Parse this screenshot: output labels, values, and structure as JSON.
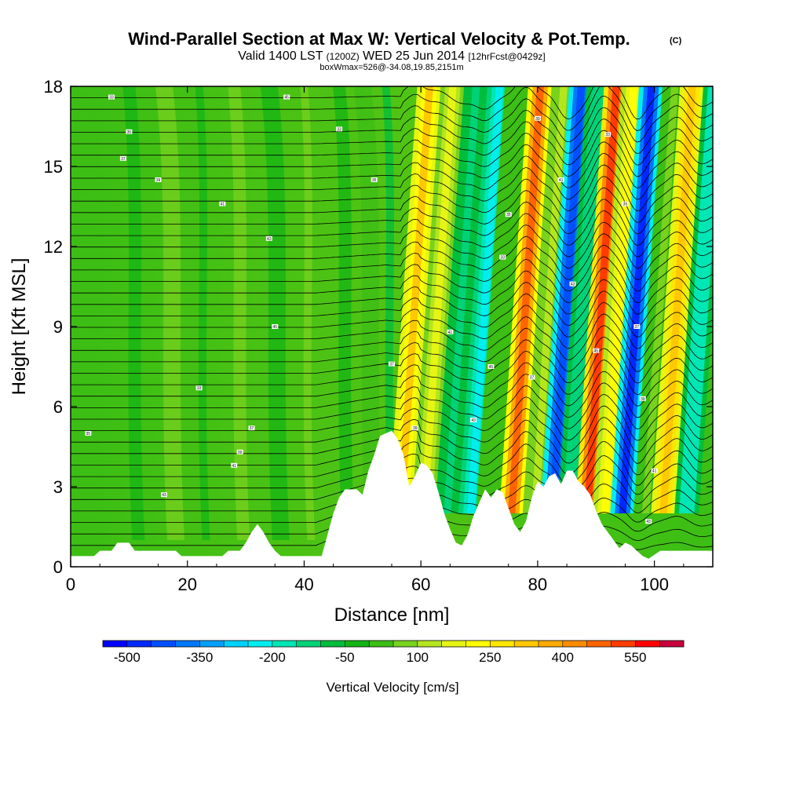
{
  "chart_data": {
    "type": "heatmap",
    "title": "Wind-Parallel Section at Max W: Vertical Velocity & Pot.Temp.",
    "title_mark": "(C)",
    "subtitle_parts": [
      "Valid 1400 LST",
      "(1200Z)",
      "WED 25 Jun 2014",
      "[12hrFcst@0429z]"
    ],
    "subsubtitle": "boxWmax=526@-34.08,19.85,2151m",
    "xlabel": "Distance [nm]",
    "ylabel": "Height [Kft MSL]",
    "xlim": [
      0,
      110
    ],
    "ylim": [
      0,
      18
    ],
    "x_ticks": [
      0,
      20,
      40,
      60,
      80,
      100
    ],
    "x_tick_labels": [
      "0",
      "20",
      "40",
      "60",
      "80",
      "100"
    ],
    "y_ticks": [
      0,
      3,
      6,
      9,
      12,
      15,
      18
    ],
    "y_tick_labels": [
      "0",
      "3",
      "6",
      "9",
      "12",
      "15",
      "18"
    ],
    "colorbar": {
      "label": "Vertical Velocity [cm/s]",
      "min": -550,
      "max": 650,
      "step": 50,
      "tick_values": [
        -500,
        -350,
        -200,
        -50,
        100,
        250,
        400,
        550
      ],
      "tick_labels": [
        "-500",
        "-350",
        "-200",
        "-50",
        "100",
        "250",
        "400",
        "550"
      ],
      "colors": [
        "#0000ff",
        "#0028ff",
        "#0050ff",
        "#0078ff",
        "#00a0ff",
        "#00d2ff",
        "#00eeee",
        "#00e6b4",
        "#00d278",
        "#00be3c",
        "#14b414",
        "#3cbe14",
        "#78d21e",
        "#b4e61e",
        "#e6f514",
        "#ffff00",
        "#ffe600",
        "#ffc800",
        "#ffaa00",
        "#ff8c00",
        "#ff6400",
        "#ff3c00",
        "#ff0000",
        "#c8003c"
      ]
    },
    "wave_columns_nm": [
      {
        "x": 59,
        "w": 300
      },
      {
        "x": 63,
        "w": 150
      },
      {
        "x": 67,
        "w": -120
      },
      {
        "x": 71,
        "w": -250
      },
      {
        "x": 74,
        "w": 30
      },
      {
        "x": 78,
        "w": 480
      },
      {
        "x": 82,
        "w": 100
      },
      {
        "x": 85,
        "w": -450
      },
      {
        "x": 88,
        "w": -150
      },
      {
        "x": 91,
        "w": 526
      },
      {
        "x": 94,
        "w": 200
      },
      {
        "x": 97,
        "w": -500
      },
      {
        "x": 101,
        "w": 50
      },
      {
        "x": 104,
        "w": 330
      },
      {
        "x": 108,
        "w": -200
      }
    ],
    "terrain_kft": [
      [
        0,
        0.4
      ],
      [
        4,
        0.4
      ],
      [
        5,
        0.6
      ],
      [
        7,
        0.6
      ],
      [
        8,
        0.9
      ],
      [
        10,
        0.9
      ],
      [
        11,
        0.6
      ],
      [
        18,
        0.6
      ],
      [
        19,
        0.4
      ],
      [
        26,
        0.4
      ],
      [
        27,
        0.6
      ],
      [
        29,
        0.6
      ],
      [
        30,
        0.9
      ],
      [
        31,
        1.3
      ],
      [
        32,
        1.6
      ],
      [
        33,
        1.3
      ],
      [
        34,
        0.9
      ],
      [
        35,
        0.6
      ],
      [
        36,
        0.4
      ],
      [
        43,
        0.4
      ],
      [
        44,
        1.2
      ],
      [
        45,
        2.0
      ],
      [
        46,
        2.6
      ],
      [
        47,
        2.9
      ],
      [
        49,
        2.9
      ],
      [
        50,
        2.7
      ],
      [
        51,
        3.6
      ],
      [
        52,
        4.2
      ],
      [
        53,
        4.9
      ],
      [
        55,
        5.1
      ],
      [
        56,
        4.8
      ],
      [
        57,
        4.2
      ],
      [
        58,
        3.0
      ],
      [
        59,
        3.4
      ],
      [
        60,
        3.9
      ],
      [
        61,
        3.8
      ],
      [
        62,
        3.5
      ],
      [
        63,
        2.8
      ],
      [
        64,
        2.0
      ],
      [
        65,
        1.4
      ],
      [
        66,
        0.9
      ],
      [
        67,
        0.8
      ],
      [
        68,
        1.2
      ],
      [
        69,
        1.9
      ],
      [
        70,
        2.4
      ],
      [
        71,
        2.9
      ],
      [
        72,
        2.6
      ],
      [
        73,
        2.9
      ],
      [
        74,
        2.8
      ],
      [
        75,
        2.2
      ],
      [
        76,
        1.6
      ],
      [
        77,
        1.3
      ],
      [
        78,
        1.7
      ],
      [
        79,
        2.6
      ],
      [
        80,
        3.2
      ],
      [
        81,
        3.0
      ],
      [
        82,
        3.4
      ],
      [
        83,
        3.5
      ],
      [
        84,
        3.1
      ],
      [
        85,
        3.6
      ],
      [
        86,
        3.6
      ],
      [
        87,
        3.2
      ],
      [
        88,
        3.0
      ],
      [
        89,
        2.7
      ],
      [
        90,
        2.1
      ],
      [
        91,
        1.6
      ],
      [
        92,
        1.3
      ],
      [
        93,
        1.0
      ],
      [
        94,
        0.7
      ],
      [
        95,
        0.9
      ],
      [
        96,
        0.8
      ],
      [
        97,
        0.6
      ],
      [
        98,
        0.4
      ],
      [
        99,
        0.3
      ],
      [
        101,
        0.6
      ],
      [
        110,
        0.6
      ]
    ],
    "theta_contours": {
      "base_kft": 0.8,
      "count": 40,
      "spacing_kft": 0.43
    },
    "contour_labels": [
      "33",
      "35",
      "37",
      "39",
      "41",
      "43",
      "45"
    ]
  }
}
